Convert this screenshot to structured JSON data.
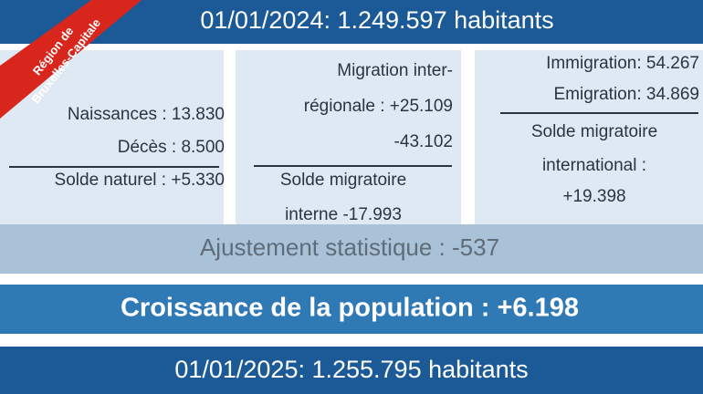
{
  "header": {
    "title": "01/01/2024: 1.249.597 habitants"
  },
  "ribbon": {
    "lines": [
      "Région de",
      "Bruxelles-Capitale"
    ]
  },
  "panels": [
    {
      "lines": [
        "Naissances : 13.830",
        "Décès : 8.500"
      ],
      "total": [
        "Solde naturel : +5.330"
      ]
    },
    {
      "lines": [
        "Migration inter-",
        "régionale : +25.109",
        "-43.102"
      ],
      "total": [
        "Solde migratoire",
        "interne -17.993"
      ]
    },
    {
      "lines": [
        "Immigration: 54.267",
        "Emigration: 34.869"
      ],
      "total": [
        "Solde migratoire",
        "international :",
        "+19.398"
      ]
    }
  ],
  "adjustment": "Ajustement statistique : -537",
  "growth": "Croissance de la population : +6.198",
  "footer": {
    "title": "01/01/2025: 1.255.795 habitants"
  }
}
